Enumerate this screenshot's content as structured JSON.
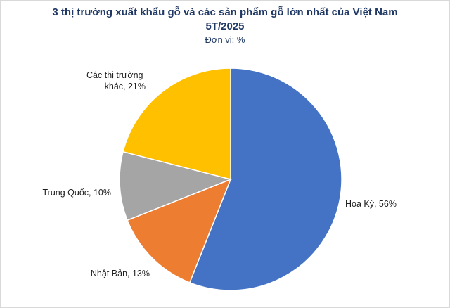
{
  "chart_data": {
    "type": "pie",
    "title_line1": "3 thị trường xuất khẩu gỗ và các sản phẩm gỗ lớn nhất của Việt Nam",
    "title_line2": "5T/2025",
    "subtitle": "Đơn vị: %",
    "slices": [
      {
        "label": "Hoa Kỳ",
        "value": 56,
        "color": "#4472C4",
        "label_text": "Hoa Kỳ, 56%"
      },
      {
        "label": "Nhật Bản",
        "value": 13,
        "color": "#ED7D31",
        "label_text": "Nhật Bản, 13%"
      },
      {
        "label": "Trung Quốc",
        "value": 10,
        "color": "#A5A5A5",
        "label_text": "Trung Quốc, 10%"
      },
      {
        "label": "Các thị trường khác",
        "value": 21,
        "color": "#FFC000",
        "label_text_lines": [
          "Các thị trường",
          "khác, 21%"
        ]
      }
    ],
    "start_angle": "12 o'clock",
    "direction": "clockwise",
    "legend": "none"
  }
}
